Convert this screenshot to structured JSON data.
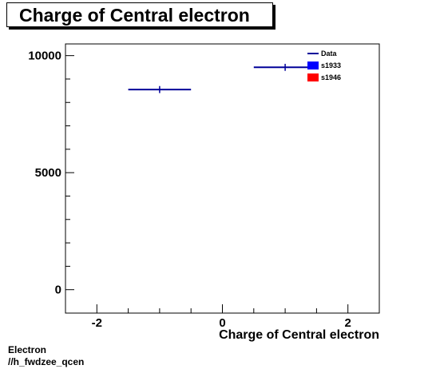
{
  "title": "Charge of Central electron",
  "footer": {
    "line1": "Electron",
    "line2": "//h_fwdzee_qcen"
  },
  "colors": {
    "data": "#000099",
    "s1933": "#0000ff",
    "s1946": "#ff0000",
    "axis": "#000000"
  },
  "chart_data": {
    "type": "scatter",
    "title": "Charge of Central electron",
    "xlabel": "Charge of Central electron",
    "ylabel": "",
    "xlim": [
      -2.5,
      2.5
    ],
    "ylim": [
      -1000,
      10500
    ],
    "x_ticks": [
      -2,
      0,
      2
    ],
    "x_tick_labels": [
      "-2",
      "0",
      "2"
    ],
    "y_ticks": [
      0,
      5000,
      10000
    ],
    "y_tick_labels": [
      "0",
      "5000",
      "10000"
    ],
    "grid": false,
    "legend": {
      "placement": "top-right",
      "entries": [
        {
          "label": "Data",
          "style": "line",
          "color": "#000099"
        },
        {
          "label": "s1933",
          "style": "box",
          "color": "#0000ff"
        },
        {
          "label": "s1946",
          "style": "box",
          "color": "#ff0000"
        }
      ]
    },
    "series": [
      {
        "name": "Data",
        "points": [
          {
            "x": -1,
            "xlow": -1.5,
            "xhigh": -0.5,
            "y": 8550,
            "yerr": 90
          },
          {
            "x": 1,
            "xlow": 0.5,
            "xhigh": 1.5,
            "y": 9500,
            "yerr": 95
          }
        ]
      }
    ]
  }
}
